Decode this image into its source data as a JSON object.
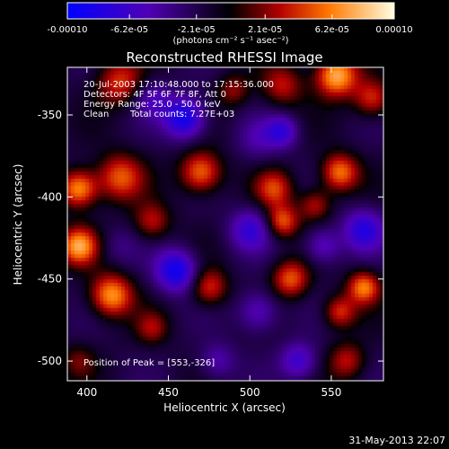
{
  "chart_data": {
    "type": "heatmap",
    "title": "Reconstructed RHESSI Image",
    "xlabel": "Heliocentric X (arcsec)",
    "ylabel": "Heliocentric Y (arcsec)",
    "xlim": [
      388,
      582
    ],
    "ylim": [
      -512,
      -321
    ],
    "x_ticks": [
      "400",
      "450",
      "500",
      "550"
    ],
    "x_tick_values": [
      400,
      450,
      500,
      550
    ],
    "y_ticks": [
      "-350",
      "-400",
      "-450",
      "-500"
    ],
    "y_tick_values": [
      -350,
      -400,
      -450,
      -500
    ],
    "colorbar": {
      "ticks": [
        "-0.00010",
        "-6.2e-05",
        "-2.1e-05",
        "2.1e-05",
        "6.2e-05",
        "0.00010"
      ],
      "tick_values": [
        -0.0001,
        -6.2e-05,
        -2.1e-05,
        2.1e-05,
        6.2e-05,
        0.0001
      ],
      "range": [
        -0.0001,
        0.0001
      ],
      "unit_label": "(photons cm⁻² s⁻¹ asec⁻²)"
    },
    "annotations": [
      "20-Jul-2003 17:10:48.000 to 17:15:36.000",
      "Detectors: 4F 5F 6F 7F 8F, Att 0",
      "Energy Range: 25.0 - 50.0 keV",
      "Clean",
      "Total counts: 7.27E+03",
      "Position of Peak = [553,-326]"
    ],
    "peak": [
      553,
      -326
    ],
    "blobs": [
      {
        "x": 553,
        "y": -326,
        "amp": 1.0,
        "s": 9
      },
      {
        "x": 420,
        "y": -330,
        "amp": 0.6,
        "s": 10
      },
      {
        "x": 520,
        "y": -332,
        "amp": 0.5,
        "s": 9
      },
      {
        "x": 490,
        "y": -335,
        "amp": 0.4,
        "s": 7
      },
      {
        "x": 575,
        "y": -340,
        "amp": 0.6,
        "s": 8
      },
      {
        "x": 470,
        "y": -385,
        "amp": 0.8,
        "s": 9
      },
      {
        "x": 420,
        "y": -388,
        "amp": 0.7,
        "s": 10
      },
      {
        "x": 395,
        "y": -395,
        "amp": 0.9,
        "s": 8
      },
      {
        "x": 555,
        "y": -385,
        "amp": 0.8,
        "s": 8
      },
      {
        "x": 515,
        "y": -395,
        "amp": 0.6,
        "s": 8
      },
      {
        "x": 540,
        "y": -405,
        "amp": 0.5,
        "s": 7
      },
      {
        "x": 395,
        "y": -430,
        "amp": 0.9,
        "s": 8
      },
      {
        "x": 440,
        "y": -415,
        "amp": 0.5,
        "s": 8
      },
      {
        "x": 520,
        "y": -415,
        "amp": 0.7,
        "s": 7
      },
      {
        "x": 525,
        "y": -450,
        "amp": 0.7,
        "s": 8
      },
      {
        "x": 475,
        "y": -455,
        "amp": 0.6,
        "s": 8
      },
      {
        "x": 415,
        "y": -460,
        "amp": 0.9,
        "s": 9
      },
      {
        "x": 570,
        "y": -455,
        "amp": 0.8,
        "s": 7
      },
      {
        "x": 555,
        "y": -470,
        "amp": 0.6,
        "s": 7
      },
      {
        "x": 440,
        "y": -480,
        "amp": 0.4,
        "s": 7
      },
      {
        "x": 560,
        "y": -500,
        "amp": 0.5,
        "s": 8
      },
      {
        "x": 395,
        "y": -500,
        "amp": 0.3,
        "s": 7
      },
      {
        "x": 460,
        "y": -352,
        "amp": -0.9,
        "s": 9
      },
      {
        "x": 440,
        "y": -340,
        "amp": -0.4,
        "s": 8
      },
      {
        "x": 505,
        "y": -365,
        "amp": -0.3,
        "s": 9
      },
      {
        "x": 455,
        "y": -445,
        "amp": -0.9,
        "s": 9
      },
      {
        "x": 500,
        "y": -420,
        "amp": -0.6,
        "s": 9
      },
      {
        "x": 505,
        "y": -470,
        "amp": -0.5,
        "s": 9
      },
      {
        "x": 570,
        "y": -420,
        "amp": -0.7,
        "s": 9
      },
      {
        "x": 545,
        "y": -430,
        "amp": -0.5,
        "s": 8
      },
      {
        "x": 530,
        "y": -500,
        "amp": -0.6,
        "s": 8
      },
      {
        "x": 420,
        "y": -430,
        "amp": -0.2,
        "s": 8
      },
      {
        "x": 480,
        "y": -500,
        "amp": -0.4,
        "s": 8
      },
      {
        "x": 520,
        "y": -360,
        "amp": -0.6,
        "s": 7
      }
    ],
    "background_level": -0.15
  },
  "footer": {
    "timestamp": "31-May-2013 22:07"
  }
}
